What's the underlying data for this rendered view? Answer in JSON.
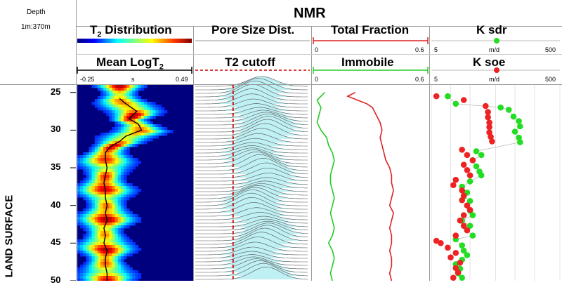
{
  "header": {
    "depth_label": "Depth",
    "scale": "1m:370m",
    "title": "NMR",
    "formation": "LAND SURFACE"
  },
  "tracks": {
    "t2": {
      "title": "T",
      "title_sub": "2",
      "title_rest": " Distribution"
    },
    "logt2": {
      "title": "Mean LogT",
      "title_sub": "2",
      "min": "-0.25",
      "unit": "s",
      "max": "0.49"
    },
    "pore": {
      "title": "Pore Size Dist."
    },
    "cutoff": {
      "title": "T2 cutoff"
    },
    "total": {
      "title": "Total Fraction",
      "min": "0",
      "max": "0.6"
    },
    "immobile": {
      "title": "Immobile",
      "min": "0",
      "max": "0.6"
    },
    "ksdr": {
      "title": "K sdr",
      "min": "5",
      "unit": "m/d",
      "max": "500"
    },
    "ksoe": {
      "title": "K soe",
      "min": "5",
      "unit": "m/d",
      "max": "500"
    }
  },
  "colors": {
    "total": "#dd2222",
    "immobile": "#22cc22",
    "cutoff": "#cc0000",
    "pore_fill": "#bff0f4",
    "ksdr": "#22dd22",
    "ksoe": "#ee2222",
    "logt2_line": "#000000"
  },
  "chart_data": {
    "type": "line",
    "depth_range": [
      24,
      50
    ],
    "depth_ticks": [
      "25",
      "30",
      "35",
      "40",
      "45",
      "50"
    ],
    "t2_cutoff_position_fraction": 0.33,
    "series": [
      {
        "name": "Mean LogT2",
        "x_range": [
          -0.25,
          0.49
        ],
        "depth": [
          25.8,
          26.5,
          27.5,
          28.5,
          29.2,
          30.0,
          30.8,
          31.5,
          32.2,
          33.0,
          34.0,
          35.0,
          36.0,
          37.0,
          38.0,
          39.0,
          40.0,
          41.0,
          42.0,
          43.0,
          44.0,
          45.0,
          46.0,
          47.0,
          48.0,
          49.0,
          50.0
        ],
        "x": [
          0.02,
          0.06,
          0.13,
          0.08,
          0.14,
          0.16,
          0.06,
          0.02,
          -0.04,
          -0.07,
          -0.07,
          -0.06,
          -0.07,
          -0.08,
          -0.07,
          -0.07,
          -0.06,
          -0.07,
          -0.06,
          -0.08,
          -0.07,
          -0.08,
          -0.06,
          -0.07,
          -0.07,
          -0.06,
          -0.06
        ]
      },
      {
        "name": "Total Fraction",
        "x_range": [
          0,
          0.6
        ],
        "depth": [
          25,
          25.5,
          26,
          26.5,
          27,
          28,
          29,
          30,
          31,
          32,
          33,
          34,
          35,
          36,
          37,
          38,
          39,
          40,
          41,
          42,
          43,
          44,
          45,
          46,
          47,
          48,
          49,
          50
        ],
        "x": [
          0.22,
          0.18,
          0.23,
          0.28,
          0.31,
          0.33,
          0.35,
          0.36,
          0.35,
          0.36,
          0.37,
          0.38,
          0.4,
          0.41,
          0.41,
          0.42,
          0.41,
          0.4,
          0.42,
          0.41,
          0.4,
          0.41,
          0.41,
          0.4,
          0.41,
          0.41,
          0.4,
          0.41
        ]
      },
      {
        "name": "Immobile",
        "x_range": [
          0,
          0.6
        ],
        "depth": [
          25,
          26,
          27,
          28,
          29,
          30,
          31,
          32,
          33,
          34,
          35,
          36,
          37,
          38,
          39,
          40,
          41,
          42,
          43,
          44,
          45,
          46,
          47,
          48,
          49,
          50
        ],
        "x": [
          0.06,
          0.02,
          0.04,
          0.03,
          0.02,
          0.04,
          0.07,
          0.08,
          0.1,
          0.11,
          0.1,
          0.09,
          0.09,
          0.1,
          0.11,
          0.1,
          0.09,
          0.1,
          0.11,
          0.1,
          0.08,
          0.1,
          0.11,
          0.1,
          0.09,
          0.1
        ]
      },
      {
        "name": "K sdr",
        "x_range": [
          5,
          500
        ],
        "log": true,
        "depth": [
          25.5,
          26.5,
          27.0,
          27.3,
          28.2,
          28.8,
          29.5,
          30.2,
          31.0,
          31.6,
          32.8,
          33.3,
          34.0,
          34.8,
          35.5,
          36.0,
          36.8,
          37.5,
          38.3,
          38.8,
          39.4,
          40.0,
          40.7,
          41.3,
          42.0,
          42.7,
          43.3,
          44.0,
          44.5,
          45.3,
          46.0,
          46.6,
          47.2,
          47.8,
          48.4,
          49.0,
          49.6
        ],
        "x": [
          9,
          12,
          60,
          80,
          95,
          115,
          120,
          100,
          115,
          120,
          25,
          30,
          22,
          25,
          28,
          30,
          20,
          15,
          18,
          16,
          20,
          18,
          20,
          22,
          15,
          20,
          18,
          22,
          12,
          15,
          16,
          18,
          15,
          12,
          14,
          13,
          15
        ]
      },
      {
        "name": "K soe",
        "x_range": [
          5,
          500
        ],
        "log": true,
        "depth": [
          25.5,
          26.0,
          26.8,
          27.6,
          28.3,
          29.0,
          29.6,
          30.3,
          30.9,
          31.5,
          32.6,
          33.3,
          34.0,
          34.6,
          35.3,
          36.0,
          36.6,
          37.3,
          38.0,
          38.7,
          39.3,
          40.0,
          40.6,
          41.3,
          42.0,
          42.7,
          43.3,
          44.0,
          44.7,
          45.0,
          45.6,
          46.3,
          46.9,
          47.6,
          48.3,
          48.9,
          49.6
        ],
        "x": [
          6,
          16,
          35,
          38,
          38,
          40,
          40,
          40,
          42,
          44,
          15,
          18,
          22,
          16,
          18,
          20,
          12,
          11,
          15,
          16,
          15,
          18,
          20,
          16,
          14,
          16,
          18,
          12,
          6,
          7,
          9,
          12,
          10,
          14,
          12,
          13,
          11
        ]
      }
    ],
    "t2_distribution": {
      "log_t2_range": [
        -0.25,
        0.49
      ],
      "colormap": "jet",
      "description_peak_follows": "Mean LogT2"
    }
  }
}
